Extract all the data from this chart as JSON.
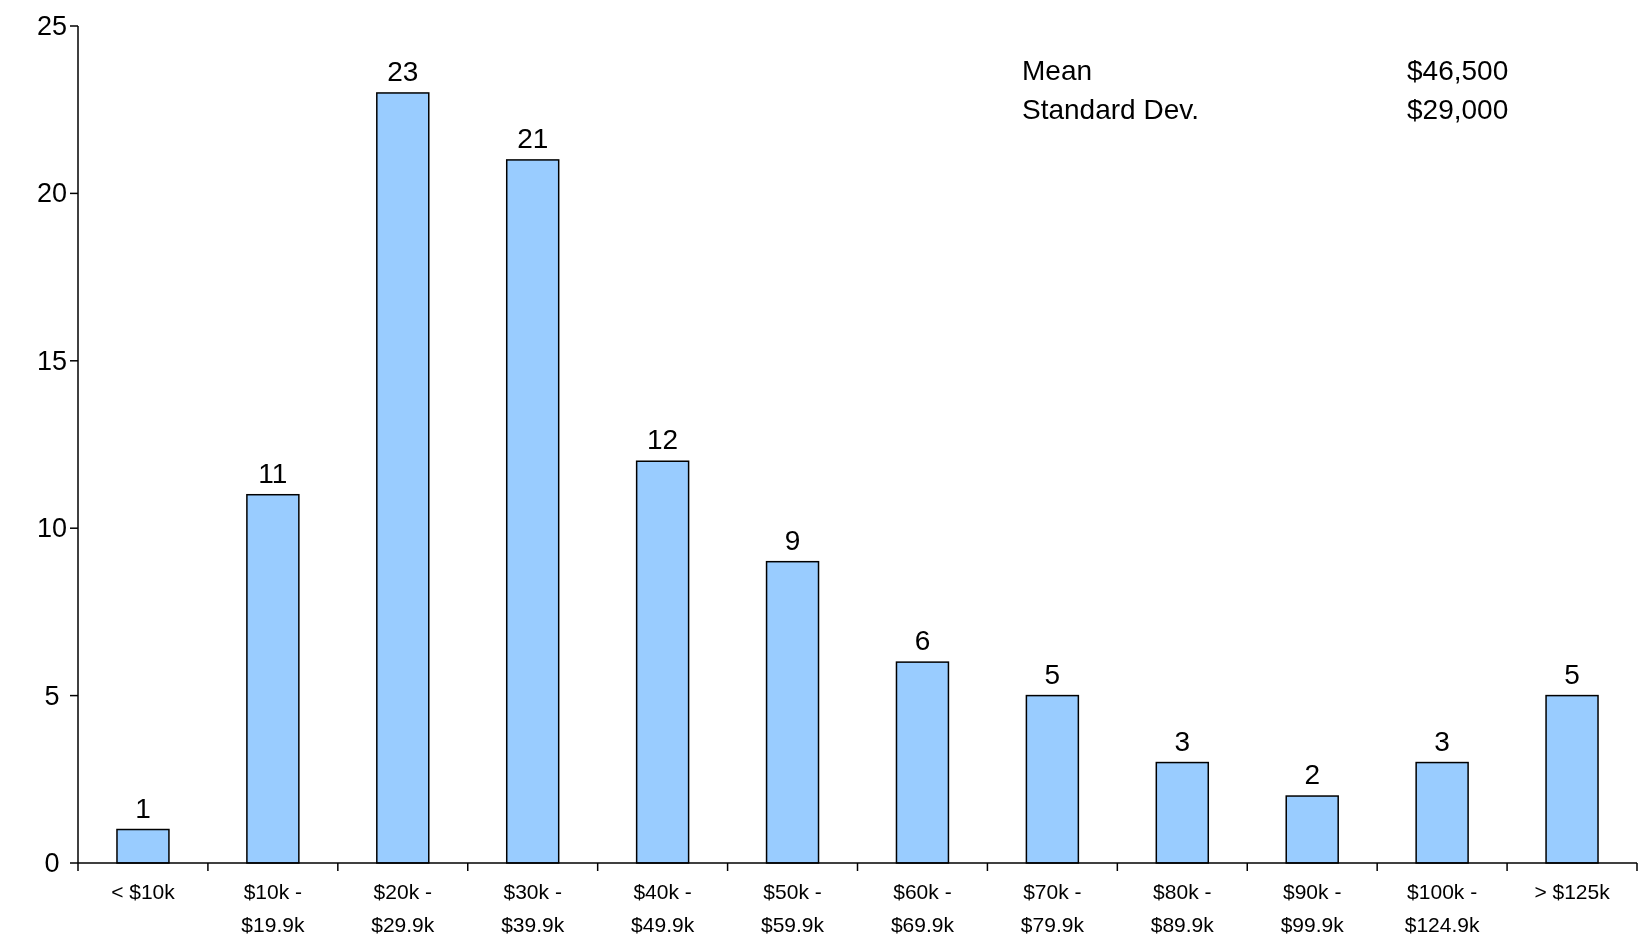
{
  "chart_data": {
    "type": "bar",
    "categories": [
      "< $10k",
      "$10k - $19.9k",
      "$20k - $29.9k",
      "$30k - $39.9k",
      "$40k - $49.9k",
      "$50k - $59.9k",
      "$60k - $69.9k",
      "$70k - $79.9k",
      "$80k - $89.9k",
      "$90k - $99.9k",
      "$100k - $124.9k",
      "> $125k"
    ],
    "values": [
      1,
      11,
      23,
      21,
      12,
      9,
      6,
      5,
      3,
      2,
      3,
      5
    ],
    "color": "#99ccff",
    "ylim": [
      0,
      25
    ],
    "yticks": [
      0,
      5,
      10,
      15,
      20,
      25
    ],
    "data_labels": true,
    "grid": false,
    "annotations": [
      "Mean",
      "$46,500",
      "Standard Dev.",
      "$29,000"
    ]
  }
}
